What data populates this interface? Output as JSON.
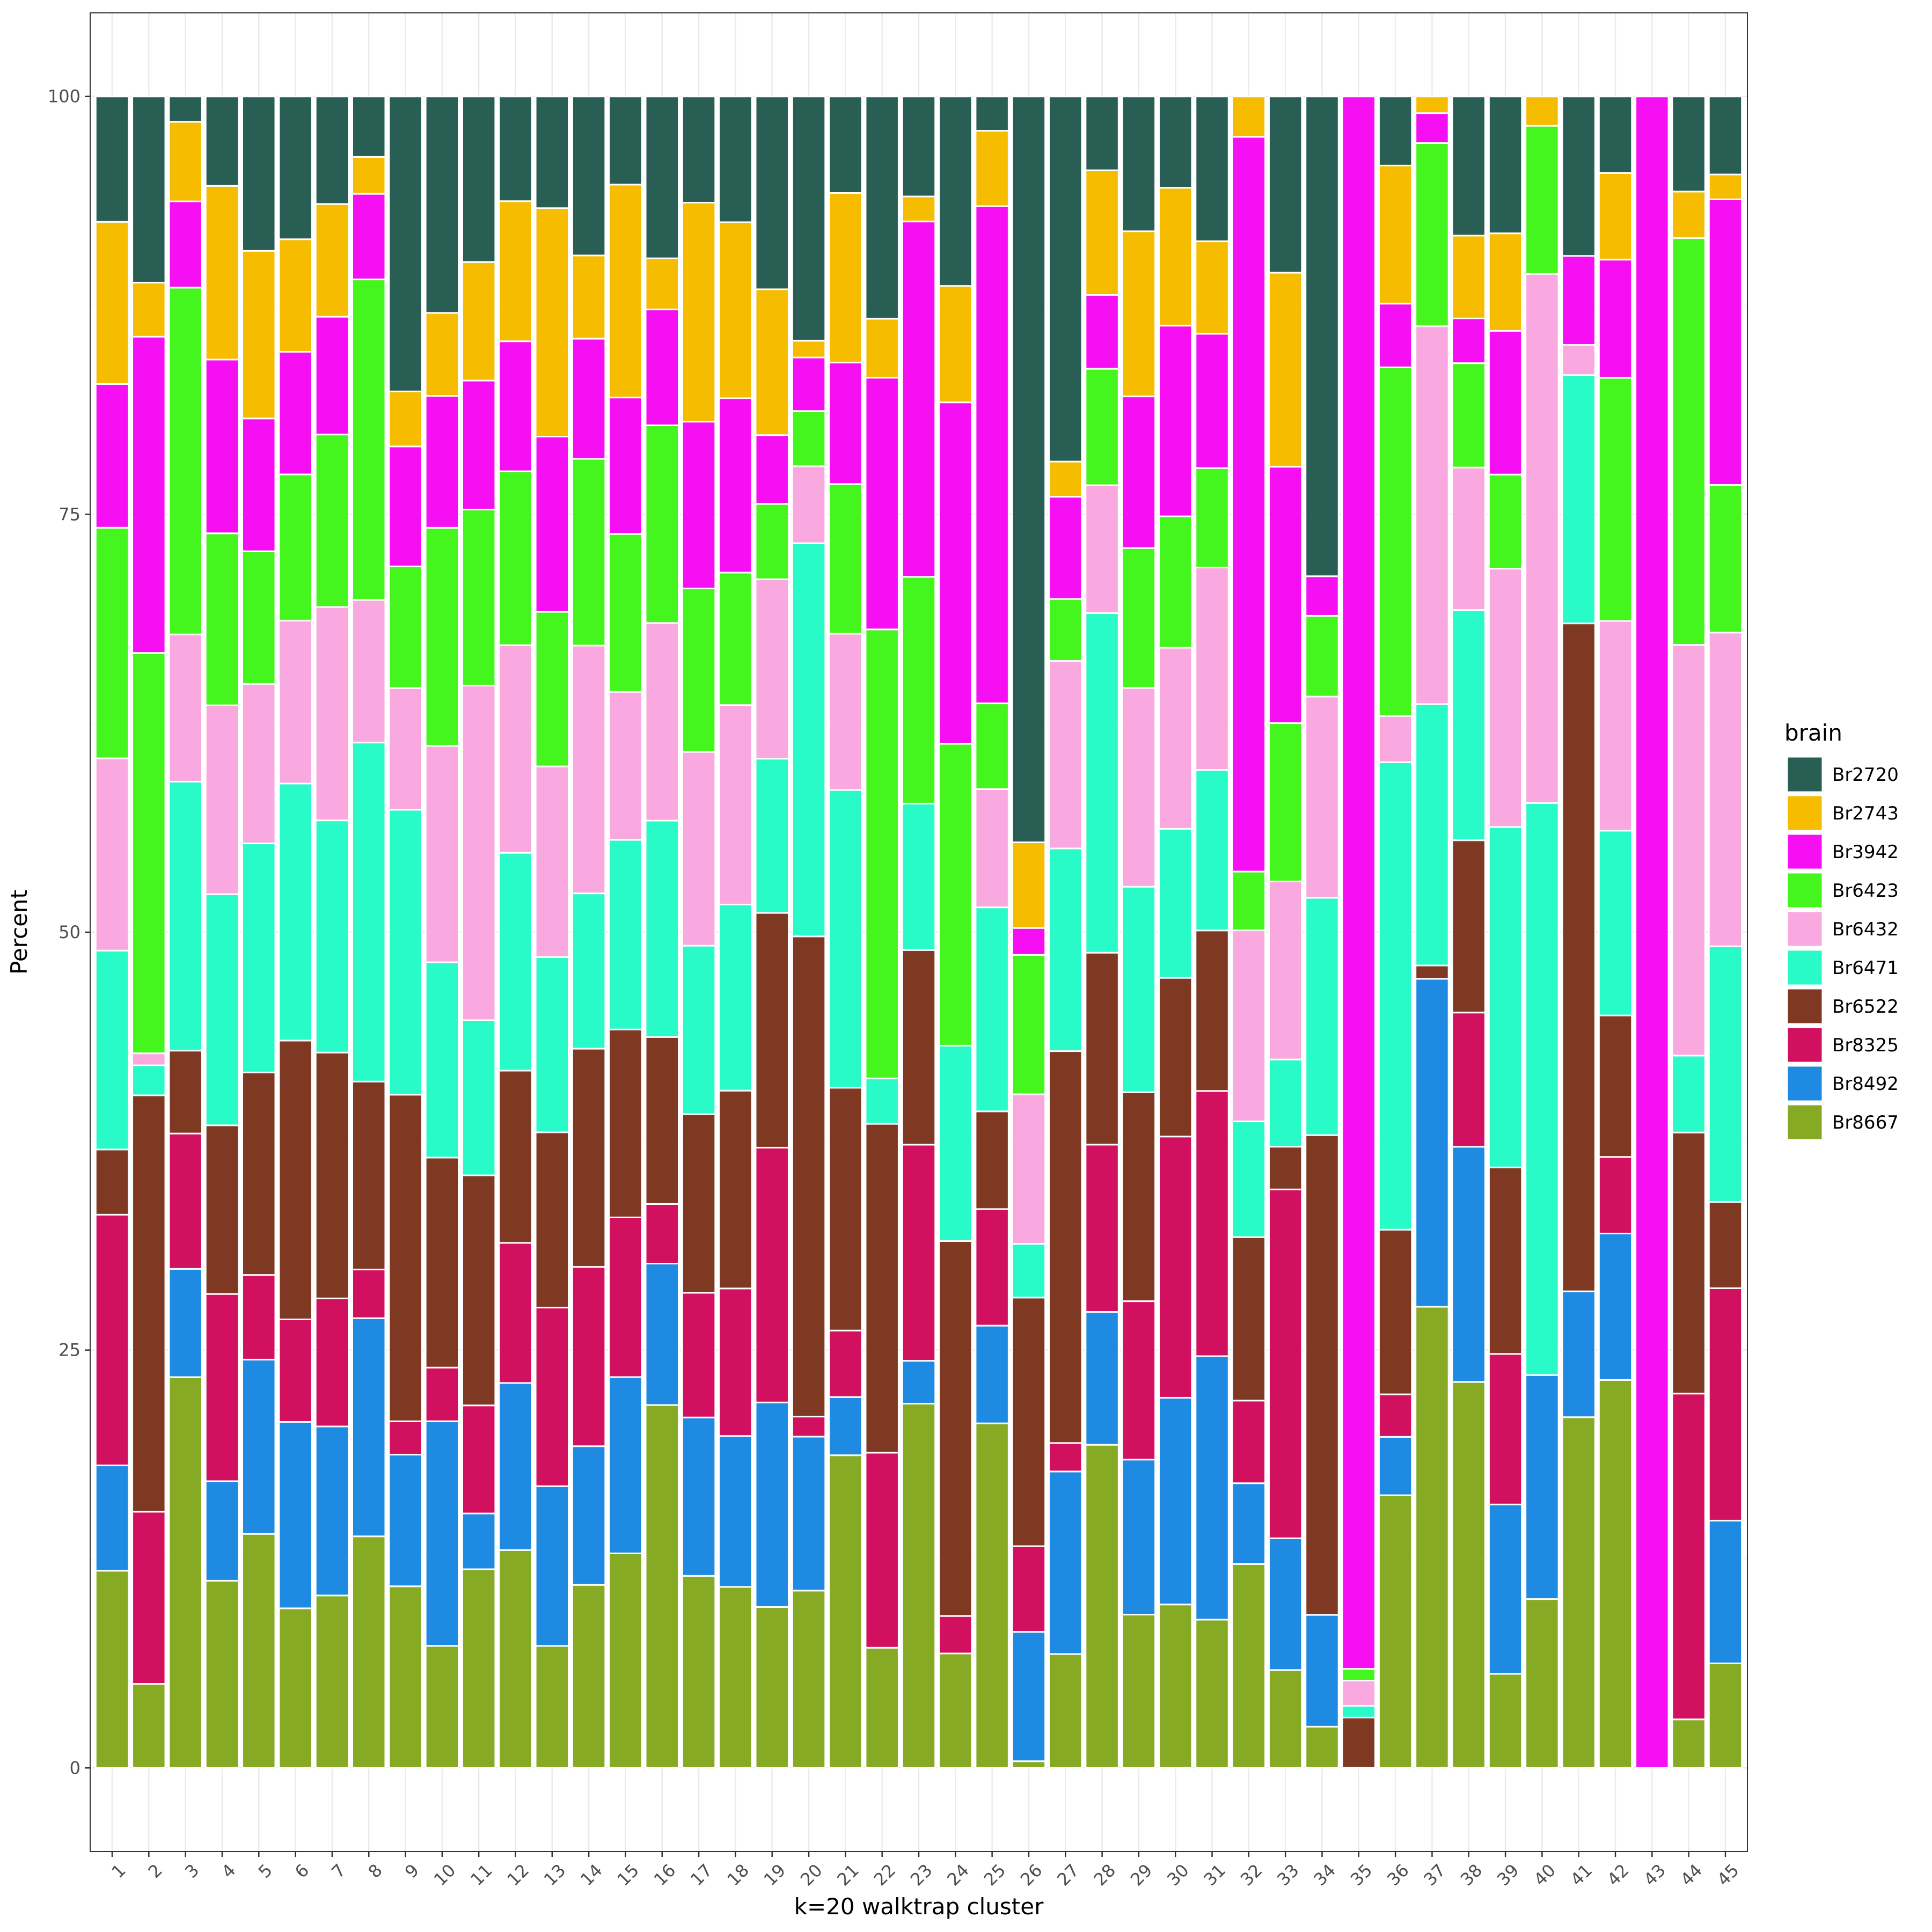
{
  "chart_data": {
    "type": "bar",
    "stacked": true,
    "title": "",
    "xlabel": "k=20 walktrap cluster",
    "ylabel": "Percent",
    "ylim": [
      -5,
      105
    ],
    "yticks": [
      0,
      25,
      50,
      75,
      100
    ],
    "grid": true,
    "legend": {
      "title": "brain",
      "placement": "right"
    },
    "categories": [
      "1",
      "2",
      "3",
      "4",
      "5",
      "6",
      "7",
      "8",
      "9",
      "10",
      "11",
      "12",
      "13",
      "14",
      "15",
      "16",
      "17",
      "18",
      "19",
      "20",
      "21",
      "22",
      "23",
      "24",
      "25",
      "26",
      "27",
      "28",
      "29",
      "30",
      "31",
      "32",
      "33",
      "34",
      "35",
      "36",
      "37",
      "38",
      "39",
      "40",
      "41",
      "42",
      "43",
      "44",
      "45"
    ],
    "stack_order_bottom_to_top": [
      "Br8667",
      "Br8492",
      "Br8325",
      "Br6522",
      "Br6471",
      "Br6432",
      "Br6423",
      "Br3942",
      "Br2743",
      "Br2720"
    ],
    "series": [
      {
        "name": "Br2720",
        "color": "#285E53",
        "values": [
          7.5,
          9.3,
          1.5,
          5.3,
          9.3,
          8.5,
          6.3,
          3.6,
          17.7,
          13.3,
          9.5,
          6.2,
          6.5,
          8.6,
          5.3,
          9.5,
          6.3,
          7.5,
          11.5,
          14.6,
          5.8,
          9.8,
          5.6,
          9.6,
          2,
          44.4,
          21.8,
          4.5,
          8,
          5.7,
          8.3,
          0,
          9.9,
          27.9,
          0,
          3.9,
          0,
          8.4,
          8,
          0,
          9.5,
          4.6,
          0,
          4.7,
          4.7
        ]
      },
      {
        "name": "Br2743",
        "color": "#F5BC00",
        "values": [
          9.7,
          2.7,
          4.7,
          10.3,
          10.1,
          6.7,
          6.6,
          2.2,
          3.3,
          5.1,
          6.8,
          8.3,
          13.3,
          4.5,
          12.8,
          3,
          13,
          10.5,
          8.7,
          1,
          10.2,
          2.6,
          1.4,
          5.9,
          4.4,
          5.1,
          2.1,
          7.6,
          9.8,
          8.6,
          5.3,
          2.2,
          10.9,
          0,
          0,
          7.8,
          1,
          5,
          5.7,
          1.7,
          0,
          5.2,
          0,
          2.3,
          1.5
        ]
      },
      {
        "name": "Br3942",
        "color": "#F50FF2",
        "values": [
          8.6,
          15.8,
          5.1,
          10.3,
          8,
          7.3,
          6.9,
          5.1,
          7.2,
          8.1,
          7.4,
          7.7,
          10.2,
          6.5,
          8.2,
          6.8,
          9.9,
          10.4,
          4.1,
          3.2,
          7.3,
          11.1,
          19.9,
          17.3,
          29,
          1.6,
          6.1,
          4.5,
          9,
          11.9,
          7.7,
          40,
          14.4,
          2.3,
          93.6,
          3.6,
          1.8,
          2.7,
          8.4,
          0,
          5.3,
          7.1,
          100,
          0,
          17.2
        ]
      },
      {
        "name": "Br6423",
        "color": "#45F51E",
        "values": [
          13.8,
          20,
          20.5,
          10.2,
          8,
          8.7,
          10.1,
          19.1,
          7.3,
          13.4,
          10.1,
          10.3,
          9,
          10.1,
          9.5,
          11.6,
          9.7,
          7.9,
          4.5,
          3.3,
          9,
          19.8,
          12.7,
          15.3,
          5,
          8.3,
          3.7,
          7.1,
          8.3,
          8.2,
          5.7,
          3.2,
          8.9,
          4.7,
          0.7,
          19.7,
          11,
          6.3,
          5.5,
          8.6,
          0,
          14.6,
          0,
          20.1,
          8.9
        ]
      },
      {
        "name": "Br6432",
        "color": "#F9A8E0",
        "values": [
          11.5,
          0.6,
          8.7,
          11.2,
          9.6,
          9.7,
          12.5,
          8.5,
          7.3,
          13.3,
          19.2,
          12.3,
          11.1,
          13.4,
          8.9,
          11.6,
          11.5,
          11.9,
          10.7,
          4.6,
          9.4,
          0,
          0,
          0,
          6.9,
          8.9,
          11.2,
          7.8,
          11.8,
          11.3,
          11.6,
          10.4,
          10,
          11.7,
          1.5,
          2.6,
          22.7,
          8.6,
          15.1,
          30.7,
          1.8,
          12.6,
          0,
          20.3,
          18.9
        ]
      },
      {
        "name": "Br6471",
        "color": "#28FAC8",
        "values": [
          11.9,
          1.5,
          15.9,
          13.7,
          13.8,
          15.3,
          13.6,
          20.2,
          17.1,
          12,
          8.9,
          12.9,
          10.2,
          8.4,
          11.4,
          12.7,
          10,
          11.1,
          9.2,
          23.5,
          17.9,
          2,
          8.2,
          9.9,
          11.9,
          3.2,
          12.1,
          20.7,
          12.2,
          9.3,
          9.2,
          6.3,
          4.9,
          13.8,
          0.7,
          26.4,
          15.7,
          13.9,
          19.9,
          33.2,
          14.8,
          11.1,
          0,
          3.8,
          15.4
        ]
      },
      {
        "name": "Br6522",
        "color": "#7F3822",
        "values": [
          3.9,
          20.8,
          4.9,
          10,
          12.2,
          16.6,
          14.4,
          11.2,
          19.6,
          12.9,
          13.2,
          10.2,
          10.2,
          11.8,
          11.3,
          9.8,
          10.6,
          11.8,
          14,
          28.7,
          14.6,
          14.5,
          10.9,
          19,
          5.7,
          14.8,
          23.4,
          11.7,
          12.4,
          9.9,
          9.2,
          8.9,
          2.4,
          27.9,
          3,
          9.3,
          0.8,
          10.4,
          10.9,
          0,
          39.8,
          8.5,
          0,
          12.9,
          5.2
        ]
      },
      {
        "name": "Br8325",
        "color": "#D21060",
        "values": [
          15,
          8.6,
          8,
          11.1,
          5.1,
          6.1,
          7.5,
          2.9,
          2,
          3.3,
          6.2,
          8.3,
          10.4,
          9.7,
          9.6,
          3.5,
          7.4,
          8.8,
          15.2,
          1.2,
          4,
          8.6,
          12.1,
          1.9,
          6.8,
          5.1,
          1.7,
          10.2,
          9.4,
          16.3,
          15.2,
          4.5,
          19.6,
          0,
          0,
          2.4,
          0,
          8.1,
          8.8,
          0,
          0,
          4.6,
          0,
          16.1,
          14
        ]
      },
      {
        "name": "Br8492",
        "color": "#1E8AE2",
        "values": [
          6.3,
          0,
          6.4,
          5.9,
          10.5,
          11.1,
          9.9,
          13,
          7.9,
          13.8,
          3.2,
          9.9,
          9.3,
          7.5,
          10.6,
          8.3,
          9.4,
          9,
          12.2,
          9.2,
          3.5,
          0,
          2.4,
          0,
          5.7,
          7.7,
          10.9,
          8.1,
          9.2,
          12.9,
          15.1,
          4.4,
          7.4,
          6.5,
          0,
          3.3,
          19.7,
          14.2,
          9.9,
          13,
          7.5,
          8.8,
          0,
          0,
          8.6
        ]
      },
      {
        "name": "Br8667",
        "color": "#86AA24",
        "values": [
          11.8,
          4.2,
          23.1,
          11.1,
          14.1,
          9.5,
          10.1,
          13.8,
          10.9,
          7.5,
          11.4,
          12.9,
          7.1,
          9.9,
          12.9,
          21.3,
          11.4,
          10.8,
          9.6,
          10.6,
          18.8,
          5.3,
          20.4,
          5.8,
          20.1,
          0.4,
          6.8,
          19.7,
          9.1,
          10.2,
          8.5,
          11.1,
          5.5,
          2.4,
          0,
          15.4,
          27.7,
          23.3,
          5.5,
          9.8,
          20.9,
          23.3,
          0,
          2.4,
          6.3
        ]
      }
    ]
  }
}
